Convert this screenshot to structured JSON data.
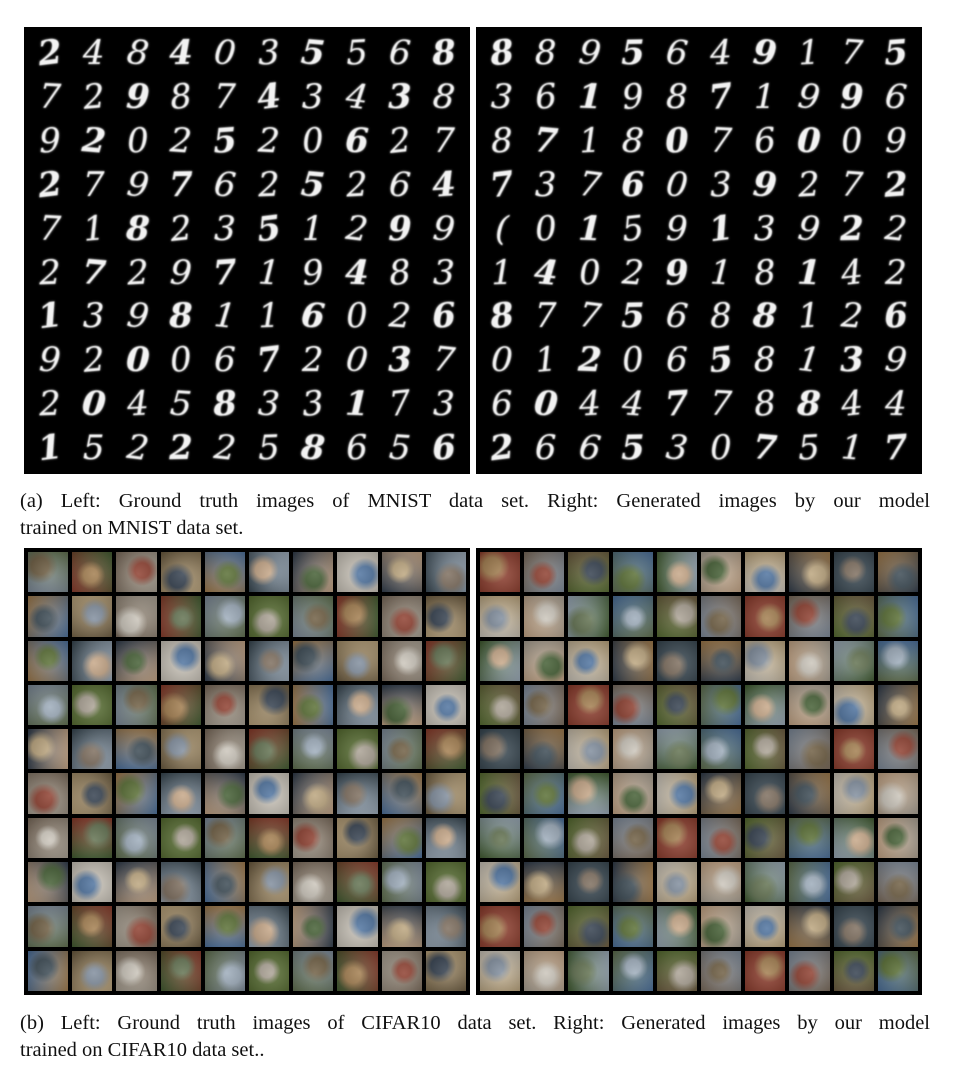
{
  "figure_a": {
    "caption_line1": "(a) Left: Ground truth images of MNIST data set. Right: Generated images by our model",
    "caption_line2": "trained on MNIST data set.",
    "left_grid_label": "Ground truth images of MNIST data set",
    "right_grid_label": "Generated images by our model trained on MNIST data set",
    "left_digits": [
      "2",
      "4",
      "8",
      "4",
      "0",
      "3",
      "5",
      "5",
      "6",
      "8",
      "7",
      "2",
      "9",
      "8",
      "7",
      "4",
      "3",
      "4",
      "3",
      "8",
      "9",
      "2",
      "0",
      "2",
      "5",
      "2",
      "0",
      "6",
      "2",
      "7",
      "2",
      "7",
      "9",
      "7",
      "6",
      "2",
      "5",
      "2",
      "6",
      "4",
      "7",
      "1",
      "8",
      "2",
      "3",
      "5",
      "1",
      "2",
      "9",
      "9",
      "2",
      "7",
      "2",
      "9",
      "7",
      "1",
      "9",
      "4",
      "8",
      "3",
      "1",
      "3",
      "9",
      "8",
      "1",
      "1",
      "6",
      "0",
      "2",
      "6",
      "9",
      "2",
      "0",
      "0",
      "6",
      "7",
      "2",
      "0",
      "3",
      "7",
      "2",
      "0",
      "4",
      "5",
      "8",
      "3",
      "3",
      "1",
      "7",
      "3",
      "1",
      "5",
      "2",
      "2",
      "2",
      "5",
      "8",
      "6",
      "5",
      "6"
    ],
    "right_digits": [
      "8",
      "8",
      "9",
      "5",
      "6",
      "4",
      "9",
      "1",
      "7",
      "5",
      "3",
      "6",
      "1",
      "9",
      "8",
      "7",
      "1",
      "9",
      "9",
      "6",
      "8",
      "7",
      "1",
      "8",
      "0",
      "7",
      "6",
      "0",
      "0",
      "9",
      "7",
      "3",
      "7",
      "6",
      "0",
      "3",
      "9",
      "2",
      "7",
      "2",
      "(",
      "0",
      "1",
      "5",
      "9",
      "1",
      "3",
      "9",
      "2",
      "2",
      "1",
      "4",
      "0",
      "2",
      "9",
      "1",
      "8",
      "1",
      "4",
      "2",
      "8",
      "7",
      "7",
      "5",
      "6",
      "8",
      "8",
      "1",
      "2",
      "6",
      "0",
      "1",
      "2",
      "0",
      "6",
      "5",
      "8",
      "1",
      "3",
      "9",
      "6",
      "0",
      "4",
      "4",
      "7",
      "7",
      "8",
      "8",
      "4",
      "4",
      "2",
      "6",
      "6",
      "5",
      "3",
      "0",
      "7",
      "5",
      "1",
      "7"
    ]
  },
  "figure_b": {
    "caption_line1": "(b) Left: Ground truth images of CIFAR10 data set. Right: Generated images by our model",
    "caption_line2": "trained on CIFAR10 data set..",
    "left_grid_label": "Ground truth images of CIFAR10 data set",
    "right_grid_label": "Generated images by our model trained on CIFAR10 data set"
  },
  "palette": {
    "panel_background": "#000000",
    "digit_color": "#f2f2f2",
    "caption_color": "#111111",
    "thumb_colors": [
      "#6b5a3e",
      "#7d8a9a",
      "#3f5a2e",
      "#a07a4a",
      "#c9c3b8",
      "#4a6f9c",
      "#8b3a2a",
      "#5e6e4c",
      "#b9a27a",
      "#2f3b4a",
      "#9aa9b8",
      "#7a6a5a",
      "#556b2f",
      "#a89f91",
      "#36454f",
      "#c4a484"
    ]
  }
}
